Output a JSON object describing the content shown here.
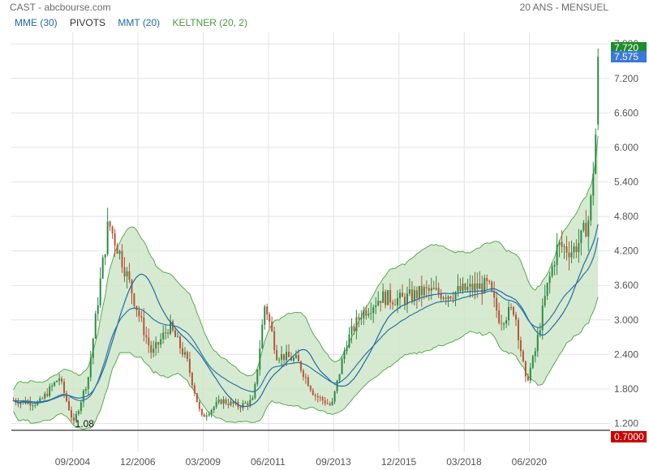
{
  "header": {
    "source": "CAST - abcbourse.com",
    "period": "20 ANS - MENSUEL"
  },
  "legend": {
    "mme": "MME (30)",
    "pivots": "PIVOTS",
    "mmt": "MMT (20)",
    "keltner": "KELTNER (20, 2)"
  },
  "colors": {
    "up": "#2e8b46",
    "down": "#b5573a",
    "mme": "#2f74a8",
    "mmt": "#1f6aa8",
    "keltner_line": "#5aaa50",
    "keltner_fill": "#cfe6c9",
    "grid": "#e3e3e3",
    "support": "#000000",
    "badge_high": "#1e8c2a",
    "badge_last": "#3a78e0",
    "badge_low": "#cc0000"
  },
  "chart_data": {
    "type": "candlestick",
    "title": "CAST - abcbourse.com",
    "period": "20 ANS - MENSUEL",
    "ylim": [
      0.7,
      8.0
    ],
    "yticks": [
      "1.200",
      "1.800",
      "2.400",
      "3.000",
      "3.600",
      "4.200",
      "4.800",
      "5.400",
      "6.000",
      "6.600",
      "7.200",
      "7.800"
    ],
    "xticks": [
      "09/2004",
      "12/2006",
      "03/2009",
      "06/2011",
      "09/2013",
      "12/2015",
      "03/2018",
      "06/2020"
    ],
    "support_level": {
      "value": 1.08,
      "label": "1.08"
    },
    "badges": [
      {
        "value": 7.72,
        "label": "7.720",
        "kind": "high"
      },
      {
        "value": 7.575,
        "label": "7.575",
        "kind": "last"
      },
      {
        "value": 0.7,
        "label": "0.7000",
        "kind": "low"
      }
    ],
    "path_points": [
      [
        2002.6,
        1.6
      ],
      [
        2003.5,
        1.55
      ],
      [
        2004.2,
        2.0
      ],
      [
        2004.7,
        1.2
      ],
      [
        2005.2,
        2.0
      ],
      [
        2005.6,
        3.6
      ],
      [
        2005.9,
        4.7
      ],
      [
        2006.4,
        4.0
      ],
      [
        2007.0,
        3.0
      ],
      [
        2007.4,
        2.4
      ],
      [
        2008.0,
        2.9
      ],
      [
        2008.6,
        2.3
      ],
      [
        2009.1,
        1.3
      ],
      [
        2009.8,
        1.6
      ],
      [
        2010.4,
        1.5
      ],
      [
        2010.9,
        1.6
      ],
      [
        2011.3,
        3.3
      ],
      [
        2011.7,
        2.4
      ],
      [
        2012.4,
        2.3
      ],
      [
        2013.0,
        1.7
      ],
      [
        2013.6,
        1.5
      ],
      [
        2014.1,
        2.6
      ],
      [
        2014.6,
        3.1
      ],
      [
        2015.3,
        3.4
      ],
      [
        2016.0,
        3.35
      ],
      [
        2016.8,
        3.5
      ],
      [
        2017.6,
        3.45
      ],
      [
        2018.4,
        3.55
      ],
      [
        2019.0,
        3.6
      ],
      [
        2019.4,
        3.0
      ],
      [
        2019.9,
        3.2
      ],
      [
        2020.3,
        1.9
      ],
      [
        2020.6,
        2.4
      ],
      [
        2021.0,
        3.5
      ],
      [
        2021.4,
        4.3
      ],
      [
        2021.9,
        4.2
      ],
      [
        2022.2,
        4.4
      ],
      [
        2022.5,
        4.8
      ],
      [
        2022.7,
        6.2
      ],
      [
        2022.85,
        7.575
      ]
    ],
    "series": [
      {
        "name": "MME (30)"
      },
      {
        "name": "PIVOTS"
      },
      {
        "name": "MMT (20)"
      },
      {
        "name": "KELTNER (20, 2)"
      }
    ]
  }
}
